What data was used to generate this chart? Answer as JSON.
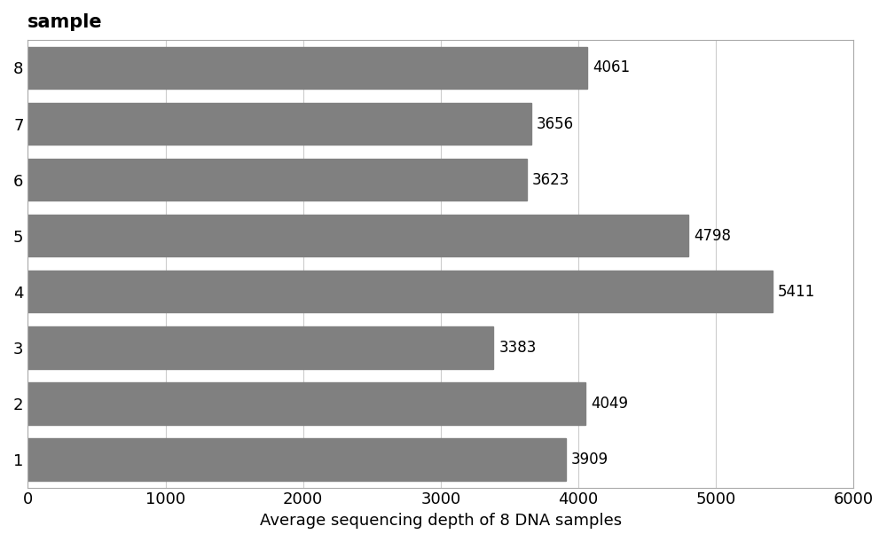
{
  "categories": [
    "1",
    "2",
    "3",
    "4",
    "5",
    "6",
    "7",
    "8"
  ],
  "values": [
    3909,
    4049,
    3383,
    5411,
    4798,
    3623,
    3656,
    4061
  ],
  "bar_color": "#808080",
  "title": "sample",
  "xlabel": "Average sequencing depth of 8 DNA samples",
  "ylabel": "",
  "xlim": [
    0,
    6000
  ],
  "xticks": [
    0,
    1000,
    2000,
    3000,
    4000,
    5000,
    6000
  ],
  "background_color": "#ffffff",
  "title_fontsize": 15,
  "xlabel_fontsize": 13,
  "tick_fontsize": 13,
  "label_fontsize": 12,
  "bar_height": 0.75,
  "grid_color": "#cccccc"
}
